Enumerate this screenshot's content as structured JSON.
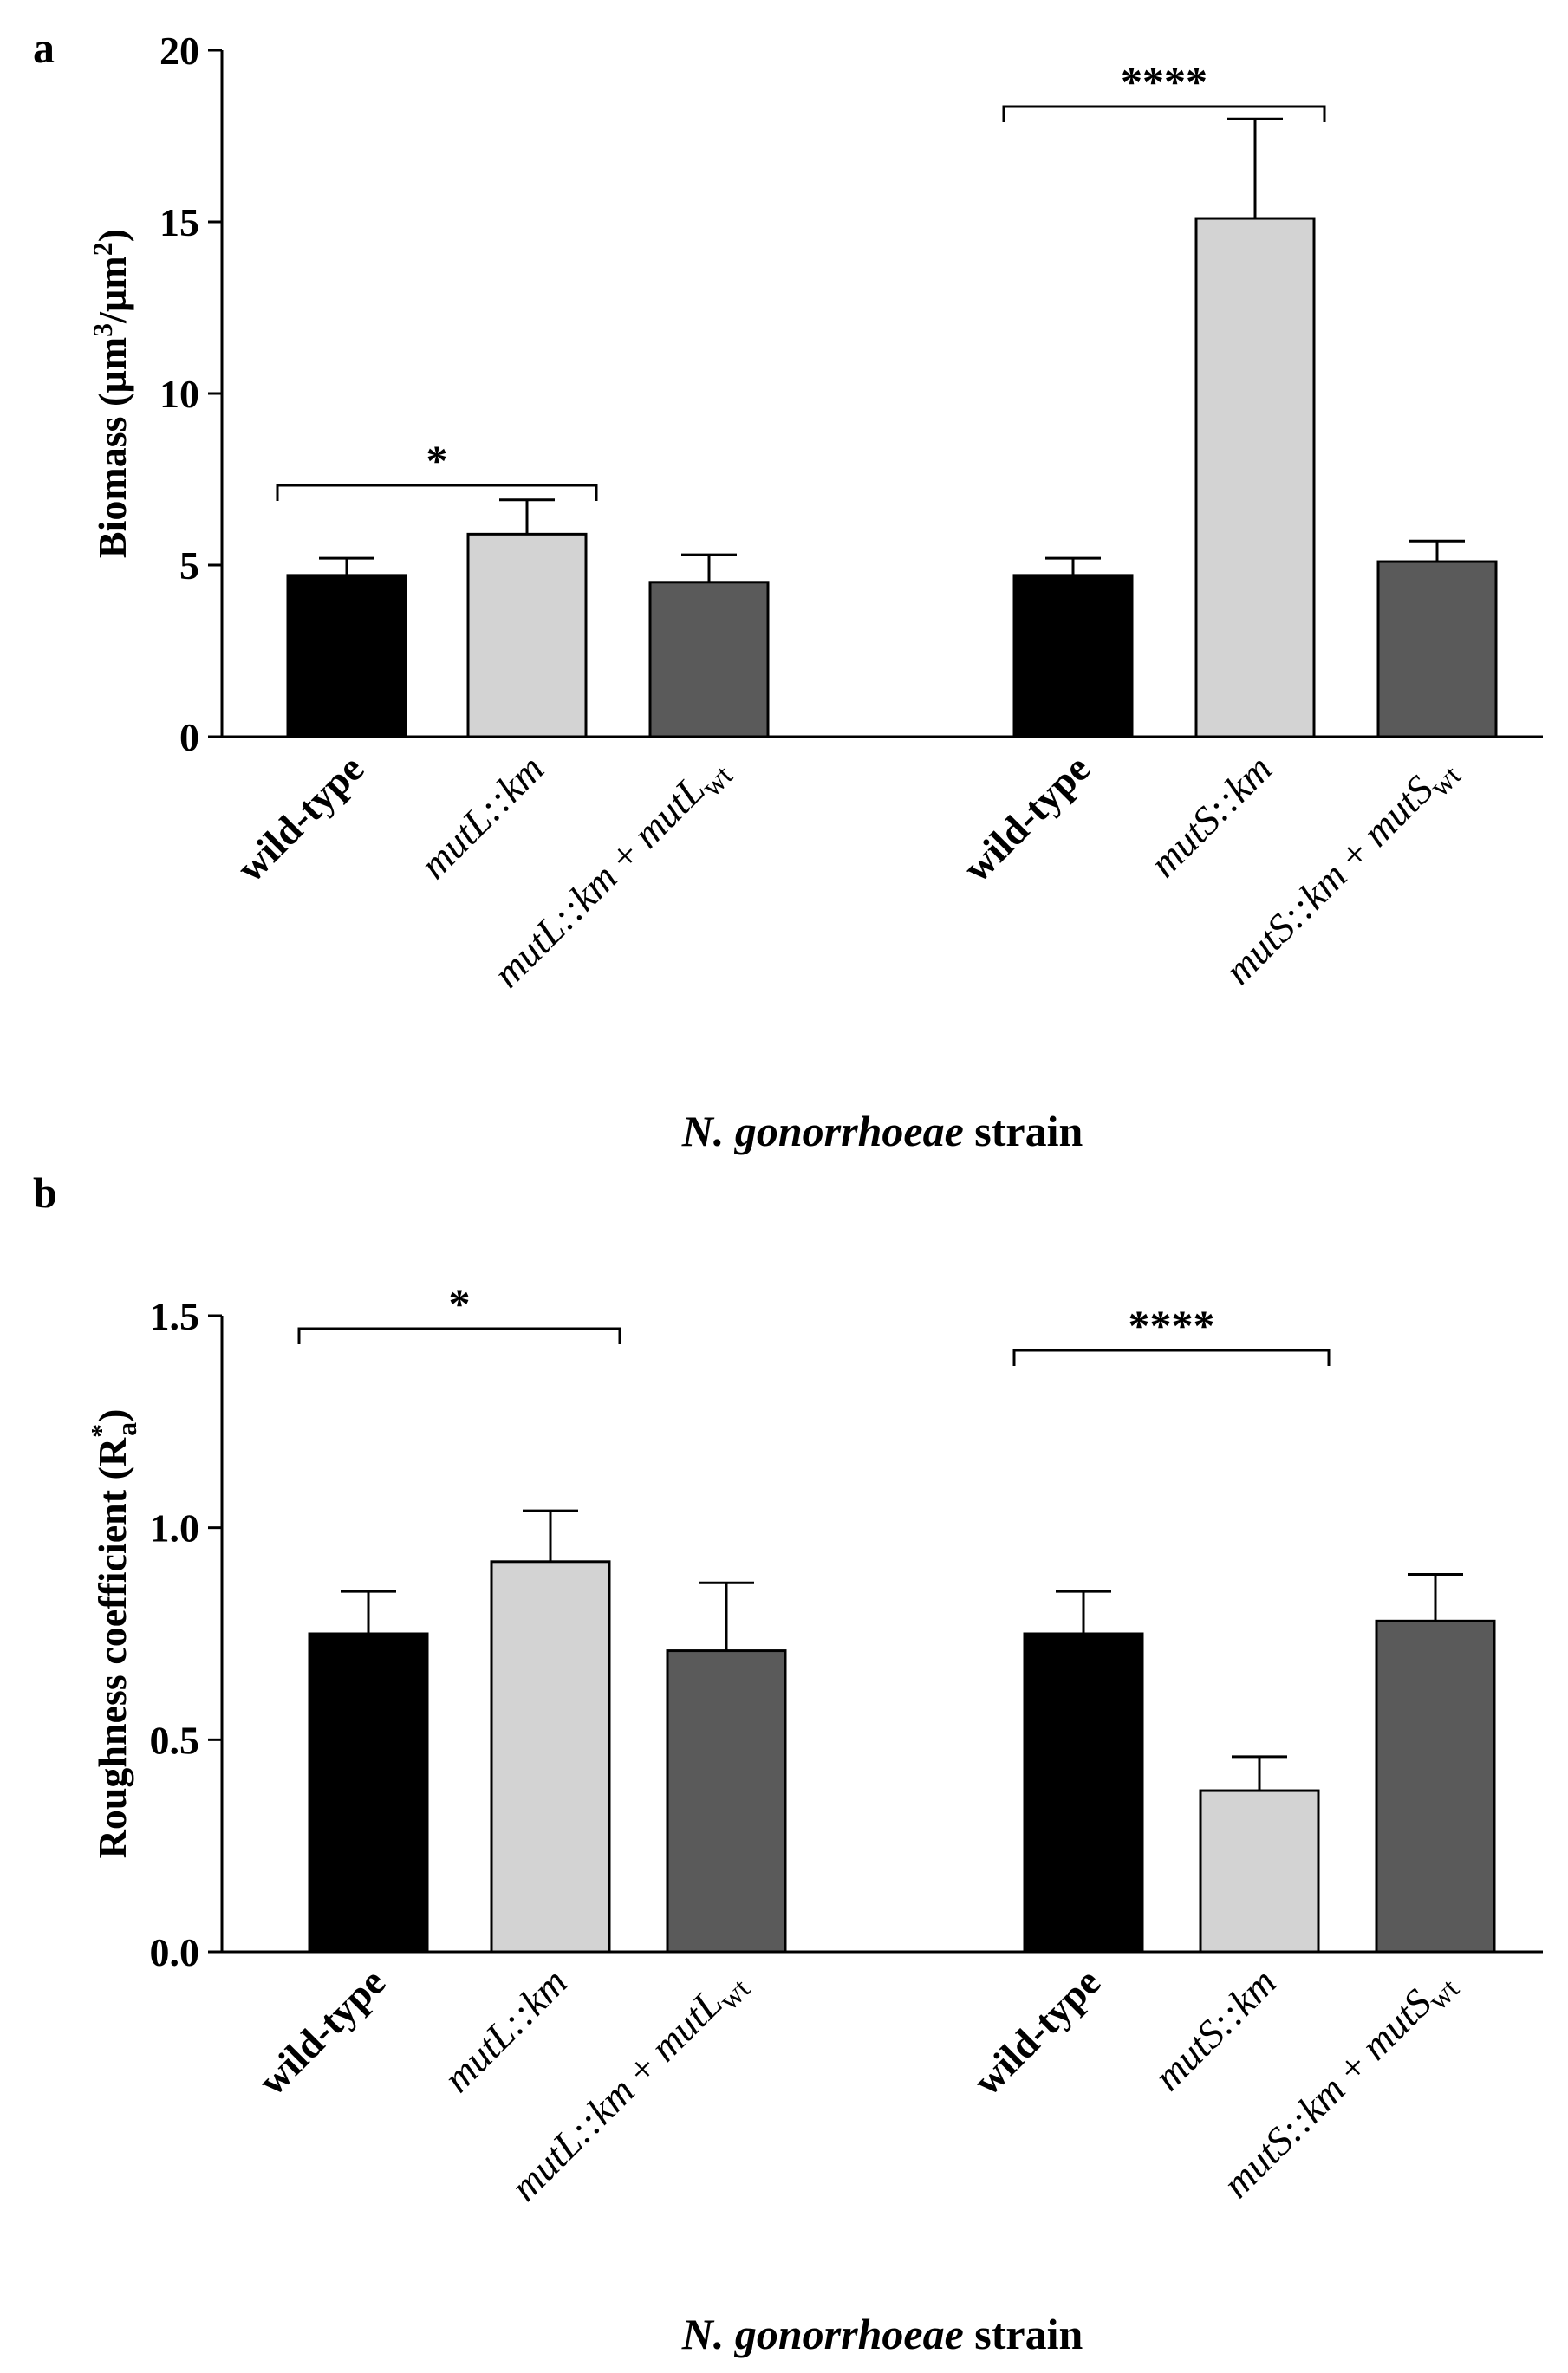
{
  "chart_data": [
    {
      "panel": "a",
      "type": "bar",
      "ylabel": "Biomass (µm3/µm2)",
      "ylabel_parts": [
        "Biomass (µm",
        "3",
        "/µm",
        "2",
        ")"
      ],
      "xlabel": "N. gonorrhoeae strain",
      "xlabel_italic": "N. gonorrhoeae",
      "xlabel_plain": " strain",
      "ylim": [
        0,
        20
      ],
      "yticks": [
        0,
        5,
        10,
        15,
        20
      ],
      "ytick_labels": [
        "0",
        "5",
        "10",
        "15",
        "20"
      ],
      "categories": [
        "wild-type",
        "mutL::km",
        "mutL::km + mutLwt",
        "wild-type",
        "mutS::km",
        "mutS::km + mutSwt"
      ],
      "values": [
        4.7,
        5.9,
        4.5,
        4.7,
        15.1,
        5.1
      ],
      "errors": [
        0.5,
        1.0,
        0.8,
        0.5,
        2.9,
        0.6
      ],
      "colors": [
        "#000000",
        "#d3d3d3",
        "#5a5a5a",
        "#000000",
        "#d3d3d3",
        "#5a5a5a"
      ],
      "significance": [
        {
          "from": 0,
          "to": 1,
          "label": "*"
        },
        {
          "from": 3,
          "to": 4,
          "label": "****"
        }
      ]
    },
    {
      "panel": "b",
      "type": "bar",
      "ylabel": "Roughness coefficient (R*a)",
      "ylabel_parts": [
        "Roughness coefficient  (R",
        "*",
        "a",
        ")"
      ],
      "xlabel": "N. gonorrhoeae strain",
      "xlabel_italic": "N. gonorrhoeae",
      "xlabel_plain": " strain",
      "ylim": [
        0,
        1.5
      ],
      "yticks": [
        0,
        0.5,
        1.0,
        1.5
      ],
      "ytick_labels": [
        "0.0",
        "0.5",
        "1.0",
        "1.5"
      ],
      "categories": [
        "wild-type",
        "mutL::km",
        "mutL::km + mutLwt",
        "wild-type",
        "mutS::km",
        "mutS::km + mutSwt"
      ],
      "values": [
        0.75,
        0.92,
        0.71,
        0.75,
        0.38,
        0.78
      ],
      "errors": [
        0.1,
        0.12,
        0.16,
        0.1,
        0.08,
        0.11
      ],
      "colors": [
        "#000000",
        "#d3d3d3",
        "#5a5a5a",
        "#000000",
        "#d3d3d3",
        "#5a5a5a"
      ],
      "significance": [
        {
          "from": 0,
          "to": 1,
          "label": "*"
        },
        {
          "from": 3,
          "to": 4,
          "label": "****"
        }
      ]
    }
  ]
}
